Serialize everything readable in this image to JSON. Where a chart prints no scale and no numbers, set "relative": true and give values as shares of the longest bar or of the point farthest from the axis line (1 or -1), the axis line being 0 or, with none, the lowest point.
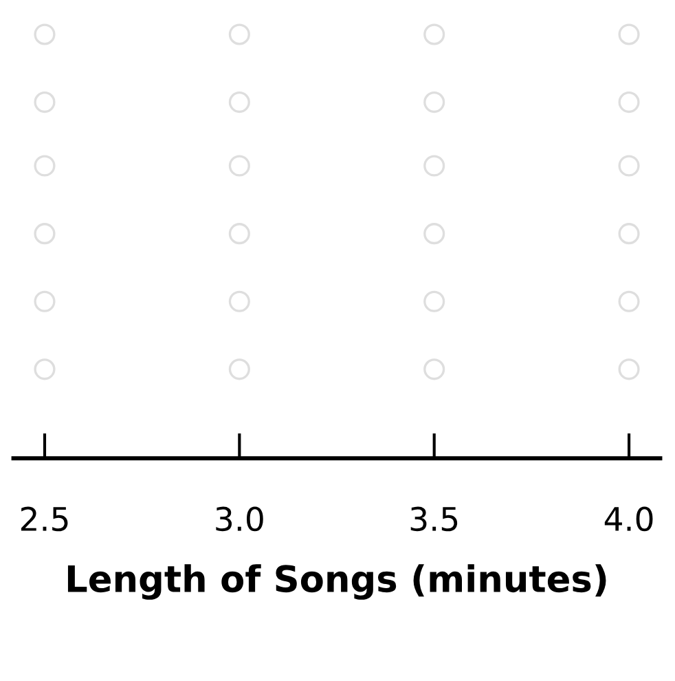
{
  "chart_data": {
    "type": "scatter",
    "xlabel": "Length of Songs (minutes)",
    "relative": true,
    "marker": "circle",
    "tick_labels": "x",
    "grid": false,
    "xlim": [
      2.42,
      4.08
    ],
    "xticks": [
      {
        "value": 2.5,
        "label": "2.5"
      },
      {
        "value": 3.0,
        "label": "3.0"
      },
      {
        "value": 3.5,
        "label": "3.5"
      },
      {
        "value": 4.0,
        "label": "4.0"
      }
    ],
    "series": [
      {
        "color": "#dedede",
        "x": [
          2.5,
          2.5,
          2.5,
          2.5,
          2.5,
          2.5,
          3.0,
          3.0,
          3.0,
          3.0,
          3.0,
          3.0,
          3.5,
          3.5,
          3.5,
          3.5,
          3.5,
          3.5,
          4.0,
          4.0,
          4.0,
          4.0,
          4.0,
          4.0
        ],
        "values": [
          0.21,
          0.37,
          0.53,
          0.69,
          0.84,
          1,
          0.21,
          0.37,
          0.53,
          0.69,
          0.84,
          1,
          0.21,
          0.37,
          0.53,
          0.69,
          0.84,
          1,
          0.21,
          0.37,
          0.53,
          0.69,
          0.84,
          1
        ]
      }
    ]
  }
}
